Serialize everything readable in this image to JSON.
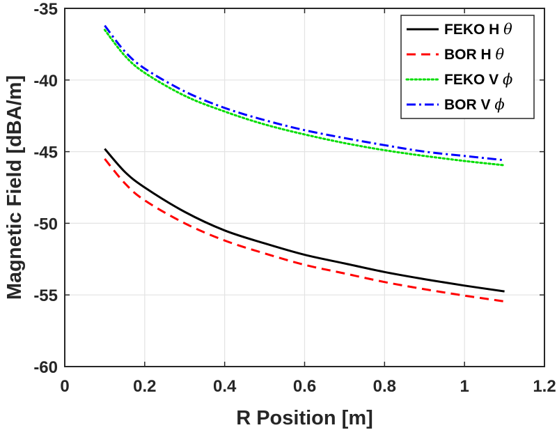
{
  "chart_data": {
    "type": "line",
    "title": "",
    "xlabel": "R Position [m]",
    "ylabel": "Magnetic Field [dBA/m]",
    "xlim": [
      0,
      1.2
    ],
    "ylim": [
      -60,
      -35
    ],
    "xticks": [
      0,
      0.2,
      0.4,
      0.6,
      0.8,
      1,
      1.2
    ],
    "xtick_labels": [
      "0",
      "0.2",
      "0.4",
      "0.6",
      "0.8",
      "1",
      "1.2"
    ],
    "yticks": [
      -60,
      -55,
      -50,
      -45,
      -40,
      -35
    ],
    "ytick_labels": [
      "-60",
      "-55",
      "-50",
      "-45",
      "-40",
      "-35"
    ],
    "grid": true,
    "legend_position": "top-right",
    "x": [
      0.1,
      0.15,
      0.2,
      0.3,
      0.4,
      0.5,
      0.6,
      0.7,
      0.8,
      0.9,
      1.0,
      1.1
    ],
    "series": [
      {
        "name": "FEKO H",
        "symbol": "θ",
        "color": "#000000",
        "style": "solid",
        "values": [
          -44.8,
          -46.4,
          -47.5,
          -49.2,
          -50.5,
          -51.4,
          -52.2,
          -52.8,
          -53.4,
          -53.9,
          -54.35,
          -54.75
        ]
      },
      {
        "name": "BOR H",
        "symbol": "θ",
        "color": "#ff0000",
        "style": "dashed",
        "values": [
          -45.5,
          -47.2,
          -48.4,
          -50.0,
          -51.2,
          -52.1,
          -52.9,
          -53.5,
          -54.1,
          -54.6,
          -55.05,
          -55.45
        ]
      },
      {
        "name": "FEKO V",
        "symbol": "ϕ",
        "color": "#00dd00",
        "style": "dotted",
        "values": [
          -36.5,
          -38.3,
          -39.5,
          -41.1,
          -42.2,
          -43.1,
          -43.8,
          -44.4,
          -44.9,
          -45.3,
          -45.65,
          -45.95
        ]
      },
      {
        "name": "BOR V",
        "symbol": "ϕ",
        "color": "#0000ff",
        "style": "dashdot",
        "values": [
          -36.2,
          -38.0,
          -39.2,
          -40.8,
          -41.95,
          -42.8,
          -43.5,
          -44.05,
          -44.55,
          -45.0,
          -45.3,
          -45.6
        ]
      }
    ]
  }
}
